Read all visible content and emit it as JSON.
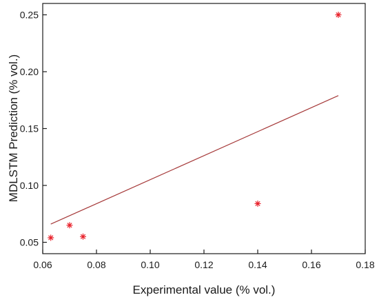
{
  "chart_data": {
    "type": "scatter",
    "title": "",
    "xlabel": "Experimental value (% vol.)",
    "ylabel": "MDLSTM Prediction (% vol.)",
    "xlim": [
      0.06,
      0.18
    ],
    "ylim": [
      0.04,
      0.26
    ],
    "xticks": [
      0.06,
      0.08,
      0.1,
      0.12,
      0.14,
      0.16,
      0.18
    ],
    "xtick_labels": [
      "0.06",
      "0.08",
      "0.10",
      "0.12",
      "0.14",
      "0.16",
      "0.18"
    ],
    "yticks": [
      0.05,
      0.1,
      0.15,
      0.2,
      0.25
    ],
    "ytick_labels": [
      "0.05",
      "0.10",
      "0.15",
      "0.20",
      "0.25"
    ],
    "grid": false,
    "legend": "none",
    "series": [
      {
        "kind": "scatter",
        "marker": "asterisk",
        "color": "#e8202a",
        "x": [
          0.063,
          0.07,
          0.075,
          0.14,
          0.17
        ],
        "y": [
          0.054,
          0.065,
          0.055,
          0.084,
          0.25
        ]
      },
      {
        "kind": "line",
        "color": "#a63a3a",
        "x": [
          0.063,
          0.17
        ],
        "y": [
          0.066,
          0.179
        ]
      }
    ]
  }
}
